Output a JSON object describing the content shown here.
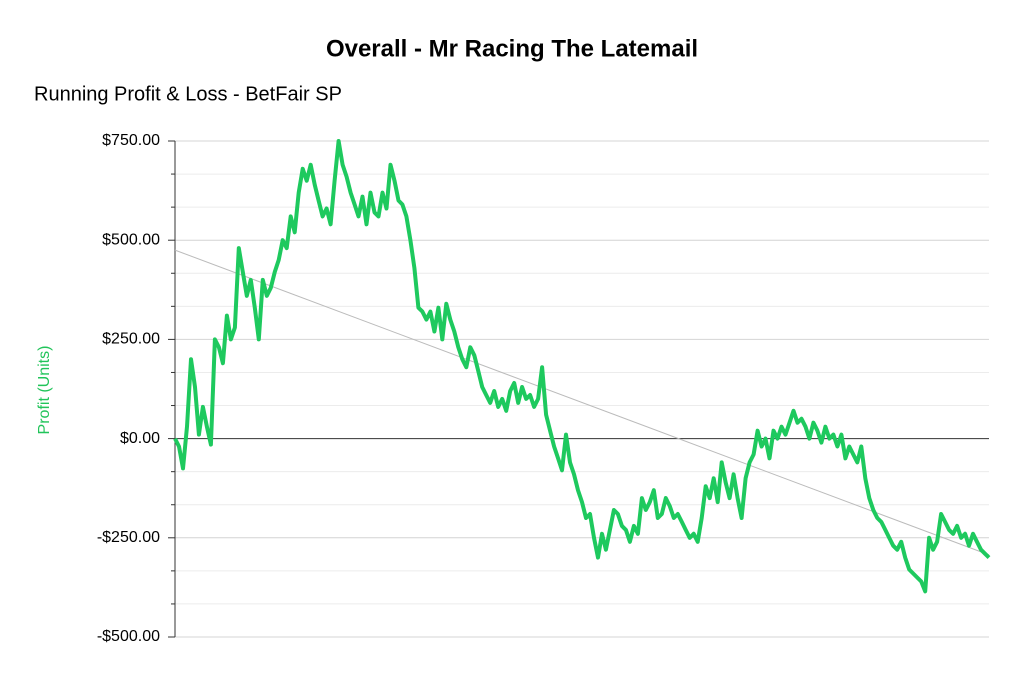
{
  "chart_data": {
    "type": "line",
    "title": "Overall - Mr Racing The Latemail",
    "subtitle": "Running Profit & Loss - BetFair SP",
    "y_label": "Profit (Units)",
    "ylim": [
      -500,
      750
    ],
    "yticks": [
      {
        "value": -500,
        "label": "-$500.00"
      },
      {
        "value": -250,
        "label": "-$250.00"
      },
      {
        "value": 0,
        "label": "$0.00"
      },
      {
        "value": 250,
        "label": "$250.00"
      },
      {
        "value": 500,
        "label": "$500.00"
      },
      {
        "value": 750,
        "label": "$750.00"
      }
    ],
    "grid": true,
    "color": "#1ec95e",
    "trend": [
      475,
      -293
    ],
    "trend_color": "#bbbbbb",
    "values": [
      0,
      -20,
      -75,
      30,
      200,
      130,
      10,
      80,
      30,
      -15,
      250,
      230,
      190,
      310,
      250,
      280,
      480,
      420,
      360,
      400,
      330,
      250,
      400,
      360,
      380,
      420,
      450,
      500,
      480,
      560,
      520,
      620,
      680,
      650,
      690,
      640,
      600,
      560,
      580,
      540,
      650,
      750,
      690,
      660,
      620,
      590,
      560,
      610,
      540,
      620,
      570,
      560,
      620,
      580,
      690,
      650,
      600,
      590,
      560,
      500,
      430,
      330,
      320,
      300,
      320,
      270,
      330,
      250,
      340,
      300,
      270,
      230,
      200,
      180,
      230,
      210,
      170,
      130,
      110,
      90,
      120,
      80,
      100,
      70,
      120,
      140,
      90,
      130,
      100,
      110,
      80,
      100,
      180,
      60,
      20,
      -20,
      -50,
      -80,
      10,
      -60,
      -90,
      -130,
      -160,
      -200,
      -190,
      -250,
      -300,
      -240,
      -280,
      -230,
      -180,
      -190,
      -220,
      -230,
      -260,
      -220,
      -240,
      -150,
      -180,
      -160,
      -130,
      -200,
      -190,
      -150,
      -170,
      -200,
      -190,
      -210,
      -230,
      -250,
      -240,
      -260,
      -200,
      -120,
      -150,
      -100,
      -160,
      -60,
      -110,
      -150,
      -90,
      -150,
      -200,
      -100,
      -60,
      -40,
      20,
      -20,
      0,
      -50,
      20,
      0,
      30,
      10,
      40,
      70,
      40,
      50,
      30,
      0,
      40,
      20,
      -10,
      30,
      0,
      10,
      -20,
      10,
      -50,
      -20,
      -40,
      -60,
      -20,
      -100,
      -150,
      -180,
      -200,
      -210,
      -230,
      -250,
      -270,
      -280,
      -260,
      -300,
      -330,
      -340,
      -350,
      -360,
      -385,
      -250,
      -280,
      -260,
      -190,
      -210,
      -230,
      -240,
      -220,
      -250,
      -240,
      -270,
      -240,
      -260,
      -280,
      -290,
      -300
    ]
  }
}
